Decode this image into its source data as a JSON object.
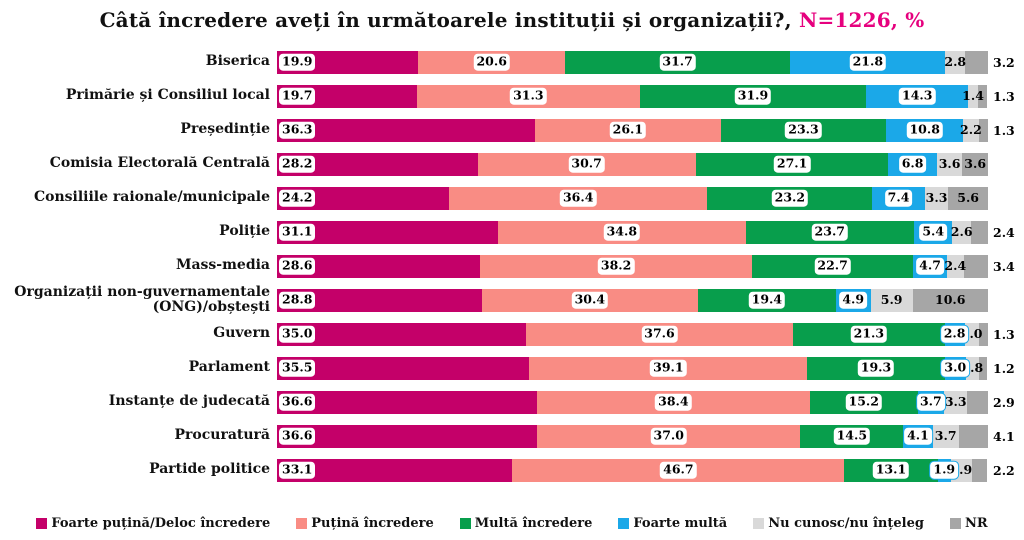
{
  "title": {
    "main": "Câtă încredere aveți în următoarele instituții și organizații?,",
    "accent": " N=1226, %"
  },
  "colors": {
    "very_little": "#C40069",
    "little": "#F98C84",
    "much": "#089E4C",
    "very_much": "#1BA8E8",
    "dont_know": "#D9D9D9",
    "nr": "#A6A6A6",
    "accent": "#E6007E",
    "text": "#111111"
  },
  "legend": {
    "items": [
      {
        "label": "Foarte puțină/Deloc încredere",
        "color_key": "very_little"
      },
      {
        "label": "Puțină încredere",
        "color_key": "little"
      },
      {
        "label": "Multă încredere",
        "color_key": "much"
      },
      {
        "label": "Foarte multă",
        "color_key": "very_much"
      },
      {
        "label": "Nu cunosc/nu înțeleg",
        "color_key": "dont_know"
      },
      {
        "label": "NR",
        "color_key": "nr"
      }
    ]
  },
  "chart_data": {
    "type": "bar",
    "stacked": true,
    "orientation": "horizontal",
    "x_range_percent": [
      0,
      100
    ],
    "grid": false,
    "legend_position": "bottom",
    "series_names": [
      "Foarte puțină/Deloc încredere",
      "Puțină încredere",
      "Multă încredere",
      "Foarte multă",
      "Nu cunosc/nu înțeleg",
      "NR"
    ],
    "series_color_keys": [
      "very_little",
      "little",
      "much",
      "very_much",
      "dont_know",
      "nr"
    ],
    "rows": [
      {
        "category": "Biserica",
        "values": [
          19.9,
          20.6,
          31.7,
          21.8,
          2.8,
          3.2
        ],
        "nr_outside": true
      },
      {
        "category": "Primărie și Consiliul local",
        "values": [
          19.7,
          31.3,
          31.9,
          14.3,
          1.4,
          1.3
        ],
        "nr_outside": true
      },
      {
        "category": "Președinție",
        "values": [
          36.3,
          26.1,
          23.3,
          10.8,
          2.2,
          1.3
        ],
        "nr_outside": true
      },
      {
        "category": "Comisia Electorală Centrală",
        "values": [
          28.2,
          30.7,
          27.1,
          6.8,
          3.6,
          3.6
        ],
        "nr_outside": false
      },
      {
        "category": "Consiliile raionale/municipale",
        "values": [
          24.2,
          36.4,
          23.2,
          7.4,
          3.3,
          5.6
        ],
        "nr_outside": false
      },
      {
        "category": "Poliție",
        "values": [
          31.1,
          34.8,
          23.7,
          5.4,
          2.6,
          2.4
        ],
        "nr_outside": true
      },
      {
        "category": "Mass-media",
        "values": [
          28.6,
          38.2,
          22.7,
          4.7,
          2.4,
          3.4
        ],
        "nr_outside": true
      },
      {
        "category": "Organizații non-guvernamentale (ONG)/obștești",
        "values": [
          28.8,
          30.4,
          19.4,
          4.9,
          5.9,
          10.6
        ],
        "nr_outside": false
      },
      {
        "category": "Guvern",
        "values": [
          35.0,
          37.6,
          21.3,
          2.8,
          2.0,
          1.3
        ],
        "nr_outside": true
      },
      {
        "category": "Parlament",
        "values": [
          35.5,
          39.1,
          19.3,
          3.0,
          1.8,
          1.2
        ],
        "nr_outside": true
      },
      {
        "category": "Instanțe de judecată",
        "values": [
          36.6,
          38.4,
          15.2,
          3.7,
          3.3,
          2.9
        ],
        "nr_outside": true
      },
      {
        "category": "Procuratură",
        "values": [
          36.6,
          37.0,
          14.5,
          4.1,
          3.7,
          4.1
        ],
        "nr_outside": true
      },
      {
        "category": "Partide politice",
        "values": [
          33.1,
          46.7,
          13.1,
          1.9,
          2.9,
          2.2
        ],
        "nr_outside": true
      }
    ]
  }
}
